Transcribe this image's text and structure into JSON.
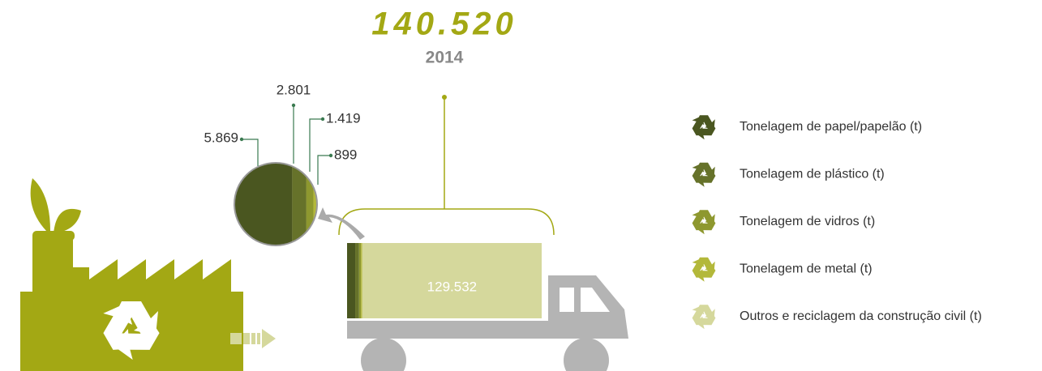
{
  "chart_data": {
    "type": "stacked_bar",
    "total": 140520,
    "total_label": "140.520",
    "categories": [
      "2014"
    ],
    "series": [
      {
        "name": "Tonelagem de papel/papelão (t)",
        "color": "#4a5620",
        "values": [
          5869
        ],
        "value_labels": [
          "5.869"
        ]
      },
      {
        "name": "Tonelagem de plástico (t)",
        "color": "#66722a",
        "values": [
          2801
        ],
        "value_labels": [
          "2.801"
        ]
      },
      {
        "name": "Tonelagem de vidros (t)",
        "color": "#8e982f",
        "values": [
          1419
        ],
        "value_labels": [
          "1.419"
        ]
      },
      {
        "name": "Tonelagem de metal (t)",
        "color": "#b3b83a",
        "values": [
          899
        ],
        "value_labels": [
          "899"
        ]
      },
      {
        "name": "Outros e reciclagem da construção civil (t)",
        "color": "#d5d89c",
        "values": [
          129532
        ],
        "value_labels": [
          "129.532"
        ]
      }
    ]
  }
}
